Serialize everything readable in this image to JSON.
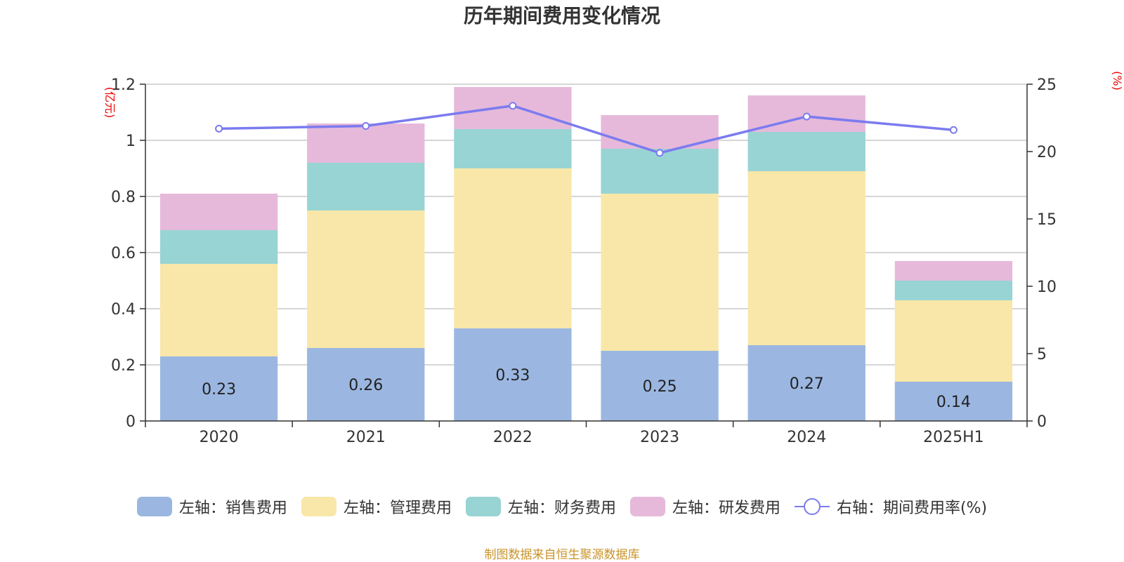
{
  "chart_data": {
    "type": "bar",
    "title": "历年期间费用变化情况",
    "categories": [
      "2020",
      "2021",
      "2022",
      "2023",
      "2024",
      "2025H1"
    ],
    "left_unit": "(亿元)",
    "right_unit": "(%)",
    "left_ylim": [
      0,
      1.2
    ],
    "left_ticks": [
      "0",
      "0.2",
      "0.4",
      "0.6",
      "0.8",
      "1",
      "1.2"
    ],
    "right_ylim": [
      0,
      25
    ],
    "right_ticks": [
      "0",
      "5",
      "10",
      "15",
      "20",
      "25"
    ],
    "grid": true,
    "legend_position": "bottom",
    "series": [
      {
        "name": "左轴：销售费用",
        "kind": "bar",
        "color": "#9bb7e1",
        "values": [
          0.23,
          0.26,
          0.33,
          0.25,
          0.27,
          0.14
        ],
        "show_labels": true
      },
      {
        "name": "左轴：管理费用",
        "kind": "bar",
        "color": "#f8e7a8",
        "values": [
          0.33,
          0.49,
          0.57,
          0.56,
          0.62,
          0.29
        ]
      },
      {
        "name": "左轴：财务费用",
        "kind": "bar",
        "color": "#98d4d4",
        "values": [
          0.12,
          0.17,
          0.14,
          0.16,
          0.14,
          0.07
        ]
      },
      {
        "name": "左轴：研发费用",
        "kind": "bar",
        "color": "#e6b9da",
        "values": [
          0.13,
          0.14,
          0.15,
          0.12,
          0.13,
          0.07
        ]
      },
      {
        "name": "右轴：期间费用率(%)",
        "kind": "line",
        "color": "#7b7bef",
        "values": [
          21.7,
          21.9,
          23.4,
          19.9,
          22.6,
          21.6
        ]
      }
    ]
  },
  "source": "制图数据来自恒生聚源数据库"
}
